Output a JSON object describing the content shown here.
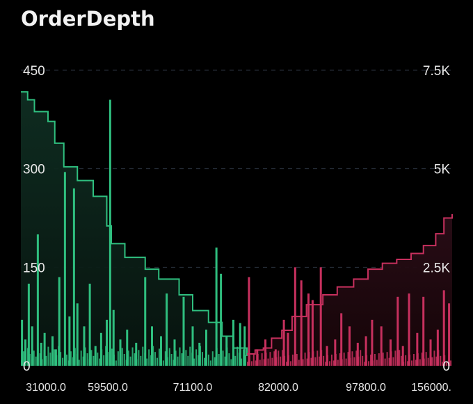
{
  "title": "OrderDepth",
  "chart_data": {
    "type": "area",
    "title": "OrderDepth",
    "grid": true,
    "left_axis": {
      "ticks": [
        "450",
        "300",
        "150",
        "0"
      ],
      "values": [
        450,
        300,
        150,
        0
      ],
      "ylim": [
        0,
        450
      ]
    },
    "right_axis": {
      "ticks": [
        "7.5K",
        "5K",
        "2.5K",
        "0"
      ],
      "values": [
        7500,
        5000,
        2500,
        0
      ],
      "ylim": [
        0,
        7500
      ]
    },
    "x_ticks": [
      "31000.0",
      "59500.0",
      "71100.0",
      "82000.0",
      "97800.0",
      "156000."
    ],
    "colors": {
      "bid": "#2fbf7f",
      "ask": "#c7305e"
    },
    "bid_cumulative": [
      [
        0,
        6950
      ],
      [
        0.03,
        6750
      ],
      [
        0.06,
        6450
      ],
      [
        0.12,
        6200
      ],
      [
        0.15,
        5650
      ],
      [
        0.19,
        5050
      ],
      [
        0.25,
        4700
      ],
      [
        0.32,
        4300
      ],
      [
        0.38,
        3550
      ],
      [
        0.4,
        3100
      ],
      [
        0.46,
        2750
      ],
      [
        0.55,
        2450
      ],
      [
        0.61,
        2200
      ],
      [
        0.7,
        1800
      ],
      [
        0.76,
        1400
      ],
      [
        0.83,
        1100
      ],
      [
        0.89,
        750
      ],
      [
        0.94,
        450
      ],
      [
        1.0,
        250
      ]
    ],
    "ask_cumulative": [
      [
        0,
        300
      ],
      [
        0.04,
        400
      ],
      [
        0.08,
        450
      ],
      [
        0.12,
        700
      ],
      [
        0.17,
        900
      ],
      [
        0.22,
        1250
      ],
      [
        0.29,
        1550
      ],
      [
        0.37,
        1800
      ],
      [
        0.44,
        2000
      ],
      [
        0.52,
        2200
      ],
      [
        0.59,
        2450
      ],
      [
        0.66,
        2600
      ],
      [
        0.73,
        2700
      ],
      [
        0.8,
        2850
      ],
      [
        0.86,
        3050
      ],
      [
        0.92,
        3350
      ],
      [
        0.96,
        3750
      ],
      [
        1.0,
        3850
      ]
    ],
    "bid_bars": [
      [
        0.005,
        70
      ],
      [
        0.02,
        40
      ],
      [
        0.035,
        125
      ],
      [
        0.05,
        60
      ],
      [
        0.075,
        200
      ],
      [
        0.09,
        35
      ],
      [
        0.105,
        50
      ],
      [
        0.14,
        45
      ],
      [
        0.155,
        25
      ],
      [
        0.17,
        135
      ],
      [
        0.195,
        295
      ],
      [
        0.215,
        75
      ],
      [
        0.235,
        270
      ],
      [
        0.25,
        95
      ],
      [
        0.28,
        60
      ],
      [
        0.305,
        125
      ],
      [
        0.33,
        30
      ],
      [
        0.355,
        50
      ],
      [
        0.38,
        70
      ],
      [
        0.395,
        405
      ],
      [
        0.41,
        85
      ],
      [
        0.44,
        40
      ],
      [
        0.47,
        55
      ],
      [
        0.51,
        35
      ],
      [
        0.55,
        135
      ],
      [
        0.58,
        60
      ],
      [
        0.62,
        45
      ],
      [
        0.645,
        110
      ],
      [
        0.68,
        40
      ],
      [
        0.72,
        105
      ],
      [
        0.76,
        60
      ],
      [
        0.79,
        35
      ],
      [
        0.82,
        55
      ],
      [
        0.865,
        180
      ],
      [
        0.885,
        140
      ],
      [
        0.91,
        45
      ],
      [
        0.94,
        70
      ],
      [
        0.97,
        65
      ],
      [
        0.99,
        60
      ]
    ],
    "ask_bars": [
      [
        0.01,
        135
      ],
      [
        0.05,
        25
      ],
      [
        0.09,
        40
      ],
      [
        0.14,
        25
      ],
      [
        0.18,
        70
      ],
      [
        0.2,
        50
      ],
      [
        0.235,
        150
      ],
      [
        0.265,
        130
      ],
      [
        0.3,
        110
      ],
      [
        0.32,
        100
      ],
      [
        0.36,
        150
      ],
      [
        0.39,
        30
      ],
      [
        0.43,
        40
      ],
      [
        0.46,
        80
      ],
      [
        0.5,
        60
      ],
      [
        0.54,
        35
      ],
      [
        0.58,
        45
      ],
      [
        0.61,
        70
      ],
      [
        0.655,
        60
      ],
      [
        0.7,
        40
      ],
      [
        0.735,
        105
      ],
      [
        0.76,
        30
      ],
      [
        0.79,
        110
      ],
      [
        0.83,
        50
      ],
      [
        0.86,
        105
      ],
      [
        0.895,
        40
      ],
      [
        0.93,
        55
      ],
      [
        0.96,
        115
      ],
      [
        0.985,
        95
      ]
    ]
  }
}
